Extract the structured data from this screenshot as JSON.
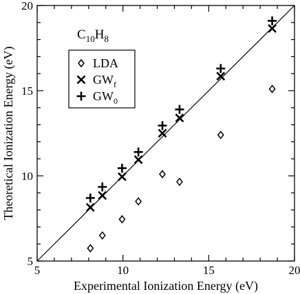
{
  "chart_data": {
    "type": "scatter",
    "xlabel": "Experimental Ionization Energy (eV)",
    "ylabel": "Theoretical Ionization Energy (eV)",
    "xlim": [
      5,
      20
    ],
    "ylim": [
      5,
      20
    ],
    "xticks": [
      "5",
      "10",
      "15",
      "20"
    ],
    "yticks": [
      "5",
      "10",
      "15",
      "20"
    ],
    "annotation": {
      "base1": "C",
      "sub1": "10",
      "base2": "H",
      "sub2": "8"
    },
    "diagonal": true,
    "legend_position": "upper-left",
    "series": [
      {
        "name": "LDA",
        "name_sub": "",
        "marker": "diamond",
        "points": [
          [
            8.1,
            5.75
          ],
          [
            8.8,
            6.5
          ],
          [
            9.95,
            7.45
          ],
          [
            10.9,
            8.5
          ],
          [
            12.3,
            10.1
          ],
          [
            13.3,
            9.65
          ],
          [
            15.7,
            12.4
          ],
          [
            18.7,
            15.1
          ]
        ]
      },
      {
        "name": "GW",
        "name_sub": "f",
        "marker": "x",
        "points": [
          [
            8.1,
            8.15
          ],
          [
            8.8,
            8.85
          ],
          [
            9.95,
            9.95
          ],
          [
            10.9,
            10.95
          ],
          [
            12.3,
            12.5
          ],
          [
            13.3,
            13.4
          ],
          [
            15.7,
            15.85
          ],
          [
            18.7,
            18.65
          ]
        ]
      },
      {
        "name": "GW",
        "name_sub": "0",
        "marker": "plus",
        "points": [
          [
            8.1,
            8.7
          ],
          [
            8.8,
            9.35
          ],
          [
            9.95,
            10.45
          ],
          [
            10.9,
            11.4
          ],
          [
            12.3,
            12.95
          ],
          [
            13.3,
            13.9
          ],
          [
            15.7,
            16.3
          ],
          [
            18.7,
            19.1
          ]
        ]
      }
    ]
  }
}
